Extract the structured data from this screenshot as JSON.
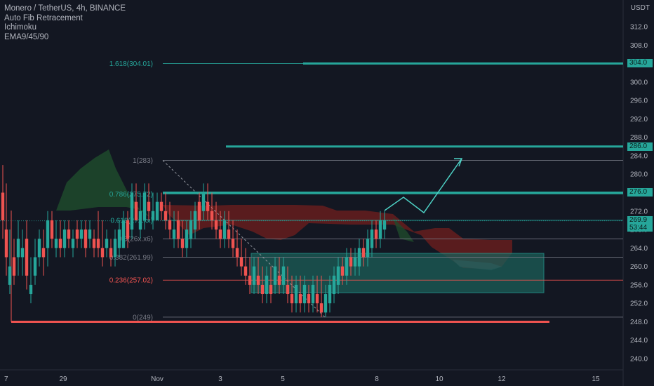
{
  "legend": {
    "symbol": "Monero / TetherUS, 4h, BINANCE",
    "indicators": [
      "Auto Fib Retracement",
      "Ichimoku",
      "EMA9/45/90"
    ]
  },
  "price_axis": {
    "currency": "USDT",
    "ticks": [
      "312.0",
      "308.0",
      "304.0",
      "300.0",
      "296.0",
      "292.0",
      "288.0",
      "284.0",
      "280.0",
      "276.0",
      "272.0",
      "268.0",
      "264.0",
      "260.0",
      "256.0",
      "252.0",
      "248.0",
      "244.0",
      "240.0"
    ],
    "tick_values": [
      312,
      308,
      304,
      300,
      296,
      292,
      288,
      284,
      280,
      276,
      272,
      268,
      264,
      260,
      256,
      252,
      248,
      244,
      240
    ]
  },
  "time_axis": {
    "labels": [
      "7",
      "29",
      "Nov",
      "3",
      "5",
      "8",
      "10",
      "12",
      "15"
    ]
  },
  "fib_levels": [
    {
      "label": "1.618(304.01)",
      "value": 304.01,
      "color": "#26a69a"
    },
    {
      "label": "1(283)",
      "value": 283,
      "color": "#787b86"
    },
    {
      "label": "0.786(275.72)",
      "value": 275.72,
      "color": "#26a69a"
    },
    {
      "label": "0.618(27x.xx)",
      "value": 270.0,
      "color": "#26a69a"
    },
    {
      "label": "0.5(26x.x6)",
      "value": 266.0,
      "color": "#787b86"
    },
    {
      "label": "0.382(261.99)",
      "value": 261.99,
      "color": "#787b86"
    },
    {
      "label": "0.236(257.02)",
      "value": 257.02,
      "color": "#ef5350"
    },
    {
      "label": "0(249)",
      "value": 249,
      "color": "#787b86"
    }
  ],
  "axis_tags": [
    {
      "text": "304.0",
      "value": 304.0
    },
    {
      "text": "286.0",
      "value": 286.0
    },
    {
      "text": "276.0",
      "value": 276.0
    }
  ],
  "current_price": {
    "price": "269.9",
    "countdown": "53:44",
    "value": 269.9
  },
  "colors": {
    "background": "#131722",
    "up": "#26a69a",
    "down": "#ef5350",
    "cloud_bull": "#1f4a2c",
    "cloud_bear": "#6b1e1e",
    "grid_text": "#b2b5be"
  }
}
